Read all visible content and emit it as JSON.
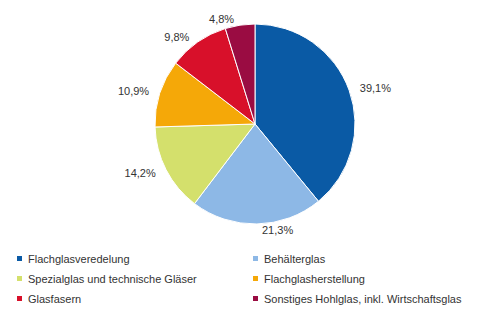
{
  "chart_data": {
    "type": "pie",
    "categories": [
      "Flachglasveredelung",
      "Behälterglas",
      "Spezialglas und technische Gläser",
      "Flachglasherstellung",
      "Glasfasern",
      "Sonstiges Hohlglas, inkl. Wirtschaftsglas"
    ],
    "values": [
      39.1,
      21.3,
      14.2,
      10.9,
      9.8,
      4.8
    ],
    "value_labels": [
      "39,1%",
      "21,3%",
      "14,2%",
      "10,9%",
      "9,8%",
      "4,8%"
    ],
    "colors": [
      "#0a5aa5",
      "#8db8e6",
      "#d4e06c",
      "#f5a808",
      "#d8102a",
      "#9a0c42"
    ],
    "data_labels": true,
    "legend": "bottom"
  }
}
